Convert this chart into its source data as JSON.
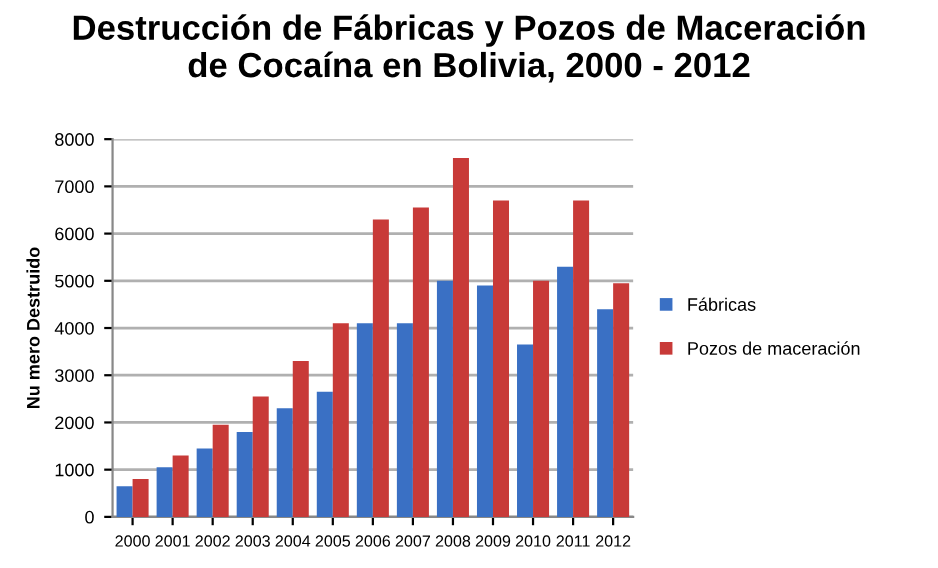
{
  "chart_data": {
    "type": "bar",
    "title": "Destrucción de Fábricas y Pozos de Maceración\nde Cocaína en Bolivia, 2000 - 2012",
    "ylabel": "Nu mero Destruido",
    "categories": [
      "2000",
      "2001",
      "2002",
      "2003",
      "2004",
      "2005",
      "2006",
      "2007",
      "2008",
      "2009",
      "2010",
      "2011",
      "2012"
    ],
    "series": [
      {
        "name": "Fábricas",
        "color": "#3a70c4",
        "values": [
          650,
          1050,
          1450,
          1800,
          2300,
          2650,
          4100,
          4100,
          5000,
          4900,
          3650,
          5300,
          4400
        ]
      },
      {
        "name": "Pozos de maceración",
        "color": "#c83a38",
        "values": [
          800,
          1300,
          1950,
          2550,
          3300,
          4100,
          6300,
          6550,
          7600,
          6700,
          5000,
          6700,
          4950
        ]
      }
    ],
    "ylim": [
      0,
      8000
    ],
    "yticks": [
      0,
      1000,
      2000,
      3000,
      4000,
      5000,
      6000,
      7000,
      8000
    ],
    "grid": "y",
    "legend": "right"
  }
}
